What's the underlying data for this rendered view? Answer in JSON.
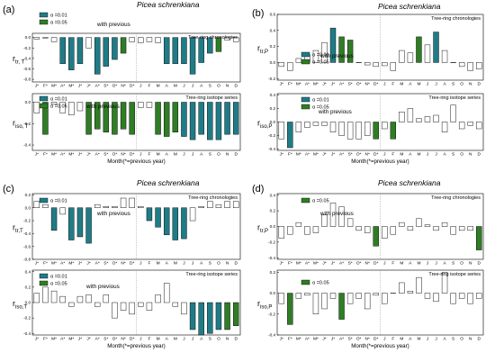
{
  "months": [
    "J*",
    "F*",
    "M*",
    "A*",
    "M*",
    "J*",
    "J*",
    "A*",
    "S*",
    "O*",
    "N*",
    "D*",
    "J",
    "F",
    "M",
    "A",
    "M",
    "J",
    "J",
    "A",
    "S",
    "O",
    "N",
    "D"
  ],
  "colors": {
    "teal": "#1f7c87",
    "green": "#2f7d24",
    "frame": "#000000",
    "divider": "#9a9a9a"
  },
  "chart_data": [
    {
      "type": "bar",
      "id": "a",
      "letter": "(a)",
      "species": "Picea schrenkiana",
      "xlabel": "",
      "series_title": "Tree-ring chronologies",
      "comparison_label": "with previous",
      "y_main": "r",
      "y_sub": "tr, T",
      "yticks": [
        "0.0",
        "-0.2",
        "-0.4",
        "-0.6",
        "-0.8"
      ],
      "ylim": [
        -0.85,
        0.08
      ],
      "legend": [
        "α =0.01",
        "α =0.05"
      ],
      "values": [
        -0.03,
        -0.01,
        -0.08,
        -0.5,
        -0.62,
        -0.5,
        -0.2,
        -0.7,
        -0.55,
        -0.42,
        -0.3,
        -0.08,
        -0.1,
        -0.08,
        -0.1,
        -0.5,
        -0.5,
        -0.5,
        -0.7,
        -0.48,
        -0.3,
        -0.27,
        -0.05,
        -0.08
      ],
      "significance": [
        "n",
        "n",
        "n",
        "t",
        "t",
        "t",
        "n",
        "t",
        "t",
        "t",
        "g",
        "n",
        "n",
        "n",
        "n",
        "t",
        "t",
        "t",
        "t",
        "t",
        "t",
        "g",
        "n",
        "n"
      ]
    },
    {
      "type": "bar",
      "id": "b",
      "letter": "(b)",
      "species": "Picea schrenkiana",
      "xlabel": "",
      "series_title": "Tree-ring chronologies",
      "comparison_label": "with previous",
      "y_main": "r",
      "y_sub": "tr,P",
      "yticks": [
        "0.6",
        "0.4",
        "0.2",
        "0.0",
        "-0.2"
      ],
      "ylim": [
        -0.22,
        0.6
      ],
      "legend": [
        "α =0.01",
        "α =0.05"
      ],
      "values": [
        -0.05,
        -0.1,
        0.05,
        0.1,
        0.15,
        0.25,
        0.43,
        0.32,
        0.28,
        0.0,
        -0.03,
        -0.05,
        -0.04,
        -0.1,
        0.15,
        0.12,
        0.32,
        0.22,
        0.38,
        0.15,
        0.0,
        -0.05,
        -0.1,
        -0.08
      ],
      "significance": [
        "n",
        "n",
        "n",
        "n",
        "n",
        "n",
        "t",
        "g",
        "g",
        "n",
        "n",
        "n",
        "n",
        "n",
        "n",
        "n",
        "g",
        "n",
        "t",
        "n",
        "n",
        "n",
        "n",
        "n"
      ]
    },
    {
      "type": "bar",
      "id": "c",
      "letter": "(c)",
      "species": "Picea schrenkiana",
      "xlabel": "",
      "series_title": "Tree-ring chronologies",
      "comparison_label": "with previous",
      "y_main": "r",
      "y_sub": "tr,T",
      "yticks": [
        "0.2",
        "0.0",
        "-0.2",
        "-0.4",
        "-0.6",
        "-0.8"
      ],
      "ylim": [
        -0.8,
        0.22
      ],
      "legend": [
        "α =0.01"
      ],
      "values": [
        0.1,
        0.05,
        -0.35,
        -0.1,
        -0.5,
        -0.45,
        -0.55,
        0.05,
        0.02,
        0.02,
        0.15,
        0.15,
        0.02,
        -0.2,
        -0.3,
        -0.42,
        -0.5,
        -0.48,
        -0.2,
        0.02,
        0.1,
        0.05,
        0.1,
        0.1
      ],
      "significance": [
        "n",
        "n",
        "t",
        "n",
        "t",
        "t",
        "t",
        "n",
        "n",
        "n",
        "n",
        "n",
        "n",
        "t",
        "t",
        "t",
        "t",
        "t",
        "n",
        "n",
        "n",
        "n",
        "n",
        "n"
      ]
    },
    {
      "type": "bar",
      "id": "d",
      "letter": "(d)",
      "species": "Picea schrenkiana",
      "xlabel": "",
      "series_title": "Tree-ring chronologies",
      "comparison_label": "with previous",
      "y_main": "r",
      "y_sub": "tr,P",
      "yticks": [
        "0.4",
        "0.2",
        "0.0",
        "-0.2",
        "-0.4"
      ],
      "ylim": [
        -0.42,
        0.42
      ],
      "legend": [
        "α =0.05"
      ],
      "values": [
        -0.15,
        -0.1,
        0.05,
        -0.1,
        -0.08,
        0.15,
        0.3,
        0.25,
        0.1,
        -0.05,
        -0.08,
        -0.25,
        -0.15,
        -0.1,
        0.05,
        -0.05,
        0.1,
        0.02,
        -0.05,
        0.05,
        -0.1,
        -0.05,
        -0.05,
        -0.3
      ],
      "significance": [
        "n",
        "n",
        "n",
        "n",
        "n",
        "n",
        "n",
        "n",
        "n",
        "n",
        "n",
        "g",
        "n",
        "n",
        "n",
        "n",
        "n",
        "n",
        "n",
        "n",
        "n",
        "n",
        "n",
        "g"
      ]
    },
    {
      "type": "bar",
      "id": "e",
      "letter": "",
      "species": "",
      "xlabel": "Month(*=previous year)",
      "series_title": "Tree-ring isotope series",
      "comparison_label": "with previous",
      "y_main": "r",
      "y_sub": "iso, T",
      "yticks": [
        "0.0",
        "-0.2",
        "-0.4"
      ],
      "ylim": [
        -0.45,
        0.08
      ],
      "legend": [
        "α =0.01",
        "α =0.05"
      ],
      "values": [
        -0.1,
        -0.3,
        -0.02,
        -0.1,
        -0.12,
        -0.08,
        -0.3,
        -0.25,
        -0.28,
        -0.3,
        -0.25,
        -0.3,
        -0.05,
        -0.05,
        -0.3,
        -0.32,
        -0.28,
        -0.32,
        -0.35,
        -0.3,
        -0.35,
        -0.35,
        -0.3,
        -0.3
      ],
      "significance": [
        "n",
        "g",
        "n",
        "n",
        "n",
        "n",
        "g",
        "g",
        "g",
        "g",
        "g",
        "g",
        "n",
        "n",
        "g",
        "g",
        "g",
        "t",
        "t",
        "t",
        "t",
        "t",
        "t",
        "t"
      ]
    },
    {
      "type": "bar",
      "id": "f",
      "letter": "",
      "species": "",
      "xlabel": "Month(*=previous year)",
      "series_title": "Tree-ring isotope series",
      "comparison_label": "with previous",
      "y_main": "r",
      "y_sub": "iso,P",
      "yticks": [
        "0.4",
        "0.2",
        "0.0",
        "-0.2",
        "-0.4"
      ],
      "ylim": [
        -0.42,
        0.42
      ],
      "legend": [
        "α =0.01",
        "α =0.05"
      ],
      "values": [
        -0.25,
        -0.38,
        -0.15,
        -0.08,
        -0.05,
        -0.05,
        -0.15,
        -0.2,
        -0.25,
        -0.25,
        -0.2,
        -0.25,
        -0.1,
        -0.25,
        0.15,
        0.2,
        0.05,
        0.08,
        0.1,
        -0.15,
        0.25,
        -0.1,
        -0.05,
        -0.1
      ],
      "significance": [
        "n",
        "t",
        "n",
        "n",
        "n",
        "n",
        "n",
        "n",
        "n",
        "n",
        "n",
        "g",
        "n",
        "g",
        "n",
        "n",
        "n",
        "n",
        "n",
        "n",
        "n",
        "n",
        "n",
        "n"
      ]
    },
    {
      "type": "bar",
      "id": "g",
      "letter": "",
      "species": "",
      "xlabel": "Month(*=previous year)",
      "series_title": "Tree-ring isotope series",
      "comparison_label": "with previous",
      "y_main": "r",
      "y_sub": "iso,T",
      "yticks": [
        "0.4",
        "0.2",
        "0.0",
        "-0.2",
        "-0.4"
      ],
      "ylim": [
        -0.42,
        0.42
      ],
      "legend": [
        "α =0.01",
        "α =0.05"
      ],
      "values": [
        0.12,
        0.2,
        0.15,
        0.08,
        -0.05,
        0.08,
        0.1,
        -0.05,
        0.1,
        -0.2,
        -0.1,
        -0.15,
        -0.05,
        -0.1,
        0.1,
        0.25,
        -0.05,
        -0.15,
        -0.35,
        -0.42,
        -0.4,
        -0.35,
        -0.35,
        -0.3
      ],
      "significance": [
        "n",
        "n",
        "n",
        "n",
        "n",
        "n",
        "n",
        "n",
        "n",
        "n",
        "n",
        "n",
        "n",
        "n",
        "n",
        "n",
        "n",
        "n",
        "t",
        "t",
        "t",
        "t",
        "g",
        "g"
      ]
    },
    {
      "type": "bar",
      "id": "h",
      "letter": "",
      "species": "",
      "xlabel": "Month(*=previous year)",
      "series_title": "Tree-ring isotope series",
      "comparison_label": "",
      "y_main": "r",
      "y_sub": "iso,P",
      "yticks": [
        "0.2",
        "0.0",
        "-0.2",
        "-0.4"
      ],
      "ylim": [
        -0.4,
        0.22
      ],
      "legend": [
        "α =0.05"
      ],
      "values": [
        -0.1,
        -0.3,
        -0.05,
        -0.02,
        -0.2,
        -0.15,
        -0.05,
        -0.25,
        -0.1,
        -0.05,
        -0.15,
        -0.02,
        -0.1,
        0.0,
        0.1,
        0.02,
        0.15,
        -0.05,
        -0.08,
        0.2,
        -0.1,
        -0.05,
        -0.1,
        -0.05
      ],
      "significance": [
        "n",
        "g",
        "n",
        "n",
        "n",
        "n",
        "n",
        "g",
        "n",
        "n",
        "n",
        "n",
        "n",
        "n",
        "n",
        "n",
        "n",
        "n",
        "n",
        "n",
        "n",
        "n",
        "n",
        "n"
      ]
    }
  ]
}
